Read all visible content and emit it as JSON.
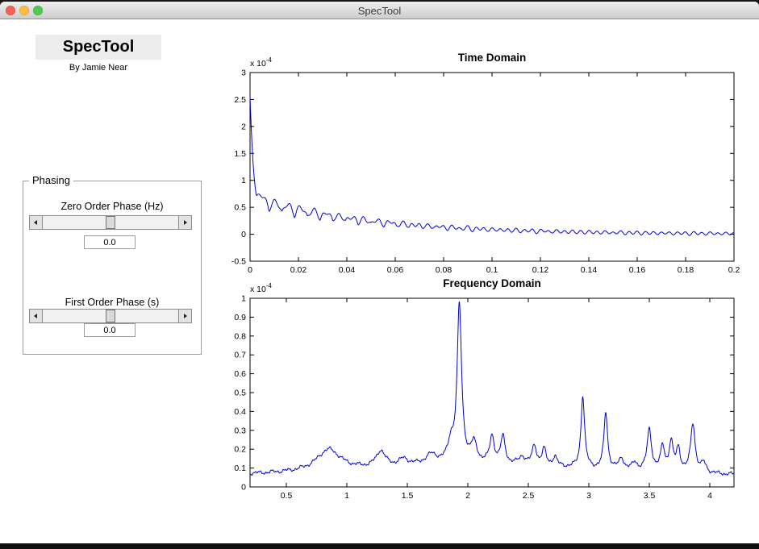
{
  "window": {
    "title": "SpecTool",
    "traffic_lights": [
      {
        "name": "close",
        "color": "#f45f57"
      },
      {
        "name": "minimize",
        "color": "#f9bd3e"
      },
      {
        "name": "zoom",
        "color": "#4fc94f"
      }
    ]
  },
  "branding": {
    "app_title": "SpecTool",
    "byline": "By Jamie Near"
  },
  "phasing": {
    "legend": "Phasing",
    "zero_order": {
      "label": "Zero Order Phase (Hz)",
      "value": "0.0",
      "slider_position": 0.5
    },
    "first_order": {
      "label": "First Order Phase (s)",
      "value": "0.0",
      "slider_position": 0.5
    }
  },
  "chart_data": [
    {
      "name": "time-domain",
      "type": "line",
      "title": "Time Domain",
      "line_color": "#0000d4",
      "exp_label": "x 10",
      "exp_sup": "-4",
      "xlim": [
        0,
        0.2
      ],
      "ylim": [
        -0.5,
        3
      ],
      "xtick_vals": [
        0,
        0.02,
        0.04,
        0.06,
        0.08,
        0.1,
        0.12,
        0.14,
        0.16,
        0.18,
        0.2
      ],
      "xtick_labels": [
        "0",
        "0.02",
        "0.04",
        "0.06",
        "0.08",
        "0.1",
        "0.12",
        "0.14",
        "0.16",
        "0.18",
        "0.2"
      ],
      "ytick_vals": [
        -0.5,
        0,
        0.5,
        1,
        1.5,
        2,
        2.5,
        3
      ],
      "ytick_labels": [
        "-0.5",
        "0",
        "0.5",
        "1",
        "1.5",
        "2",
        "2.5",
        "3"
      ],
      "grid": false,
      "legend": "none",
      "model": {
        "kind": "fid",
        "n_points": 1100,
        "spike_amp": 1.75,
        "spike_decay": 0.0013,
        "base_amp": 0.5,
        "base_decay": 0.05,
        "osc_amp": 0.27,
        "osc_decay": 0.045,
        "osc_freq": 95,
        "ripple_amp": 0.04,
        "ripple_decay": 0.4,
        "ripple_freq": 300,
        "noise_amp": 0.012
      }
    },
    {
      "name": "frequency-domain",
      "type": "line",
      "title": "Frequency Domain",
      "line_color": "#0000d4",
      "exp_label": "x 10",
      "exp_sup": "-4",
      "xlim": [
        0.2,
        4.2
      ],
      "ylim": [
        0,
        1
      ],
      "xtick_vals": [
        0.5,
        1,
        1.5,
        2,
        2.5,
        3,
        3.5,
        4
      ],
      "xtick_labels": [
        "0.5",
        "1",
        "1.5",
        "2",
        "2.5",
        "3",
        "3.5",
        "4"
      ],
      "ytick_vals": [
        0,
        0.1,
        0.2,
        0.3,
        0.4,
        0.5,
        0.6,
        0.7,
        0.8,
        0.9,
        1
      ],
      "ytick_labels": [
        "0",
        "0.1",
        "0.2",
        "0.3",
        "0.4",
        "0.5",
        "0.6",
        "0.7",
        "0.8",
        "0.9",
        "1"
      ],
      "grid": false,
      "legend": "none",
      "model": {
        "kind": "spectrum",
        "n_points": 1500,
        "baseline": 0.045,
        "noise_amp": 0.006,
        "peaks": [
          [
            2.1,
            0.075,
            1.3
          ],
          [
            0.85,
            0.115,
            0.12
          ],
          [
            1.28,
            0.085,
            0.045
          ],
          [
            1.47,
            0.035,
            0.05
          ],
          [
            1.7,
            0.05,
            0.06
          ],
          [
            1.86,
            0.1,
            0.03
          ],
          [
            1.93,
            0.83,
            0.022
          ],
          [
            2.05,
            0.1,
            0.03
          ],
          [
            2.2,
            0.14,
            0.022
          ],
          [
            2.29,
            0.14,
            0.022
          ],
          [
            2.45,
            0.04,
            0.03
          ],
          [
            2.55,
            0.1,
            0.022
          ],
          [
            2.63,
            0.085,
            0.02
          ],
          [
            2.72,
            0.05,
            0.02
          ],
          [
            2.95,
            0.38,
            0.018
          ],
          [
            3.14,
            0.3,
            0.018
          ],
          [
            3.27,
            0.06,
            0.025
          ],
          [
            3.38,
            0.04,
            0.025
          ],
          [
            3.5,
            0.22,
            0.022
          ],
          [
            3.61,
            0.13,
            0.02
          ],
          [
            3.68,
            0.15,
            0.02
          ],
          [
            3.74,
            0.12,
            0.02
          ],
          [
            3.86,
            0.26,
            0.022
          ],
          [
            3.95,
            0.05,
            0.025
          ]
        ]
      }
    }
  ]
}
